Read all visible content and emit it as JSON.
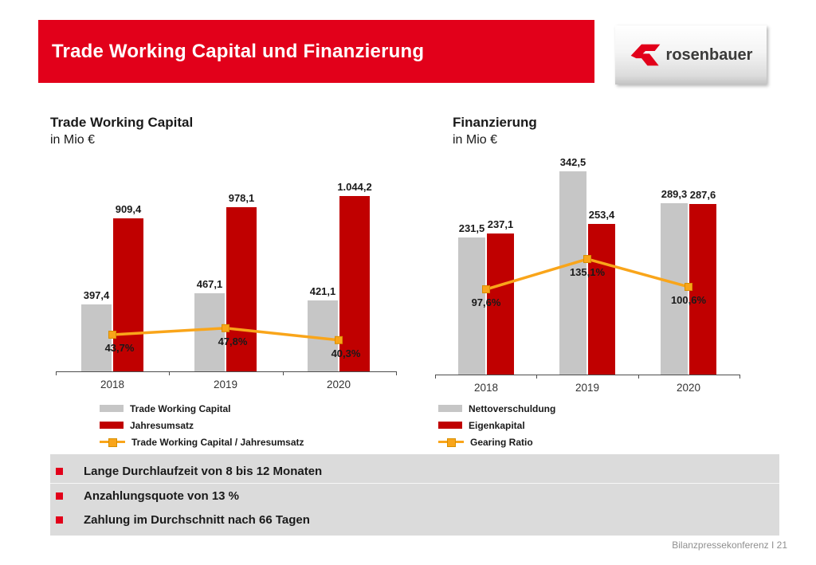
{
  "slide": {
    "title": "Trade Working Capital und Finanzierung",
    "logo_text": "rosenbauer",
    "footer": "Bilanzpressekonferenz I 21",
    "brand_red": "#E2001A",
    "bar_red": "#C00000",
    "bar_gray": "#C6C6C6",
    "line_orange": "#F9A51A"
  },
  "bullets": [
    "Lange Durchlaufzeit von 8 bis 12 Monaten",
    "Anzahlungsquote von 13 %",
    "Zahlung im Durchschnitt nach 66 Tagen"
  ],
  "chart_data": [
    {
      "id": "twc",
      "type": "bar",
      "title": "Trade Working Capital",
      "subtitle": "in Mio €",
      "categories": [
        "2018",
        "2019",
        "2020"
      ],
      "series": [
        {
          "name": "Trade Working Capital",
          "color_key": "gray",
          "values": [
            397.4,
            467.1,
            421.1
          ],
          "labels": [
            "397,4",
            "467,1",
            "421,1"
          ]
        },
        {
          "name": "Jahresumsatz",
          "color_key": "red",
          "values": [
            909.4,
            978.1,
            1044.2
          ],
          "labels": [
            "909,4",
            "978,1",
            "1.044,2"
          ]
        }
      ],
      "line_series": {
        "name": "Trade Working Capital / Jahresumsatz",
        "values": [
          43.7,
          47.8,
          40.3
        ],
        "labels": [
          "43,7%",
          "47,8%",
          "40,3%"
        ]
      },
      "ylim": [
        0,
        1100
      ],
      "grid": false,
      "legend_position": "bottom-left"
    },
    {
      "id": "fin",
      "type": "bar",
      "title": "Finanzierung",
      "subtitle": "in Mio €",
      "categories": [
        "2018",
        "2019",
        "2020"
      ],
      "series": [
        {
          "name": "Nettoverschuldung",
          "color_key": "gray",
          "values": [
            231.5,
            342.5,
            289.3
          ],
          "labels": [
            "231,5",
            "342,5",
            "289,3"
          ]
        },
        {
          "name": "Eigenkapital",
          "color_key": "red",
          "values": [
            237.1,
            253.4,
            287.6
          ],
          "labels": [
            "237,1",
            "253,4",
            "287,6"
          ]
        }
      ],
      "line_series": {
        "name": "Gearing Ratio",
        "values": [
          97.6,
          135.1,
          100.6
        ],
        "labels": [
          "97,6%",
          "135,1%",
          "100,6%"
        ]
      },
      "ylim": [
        0,
        380
      ],
      "grid": false,
      "legend_position": "bottom-left"
    }
  ]
}
